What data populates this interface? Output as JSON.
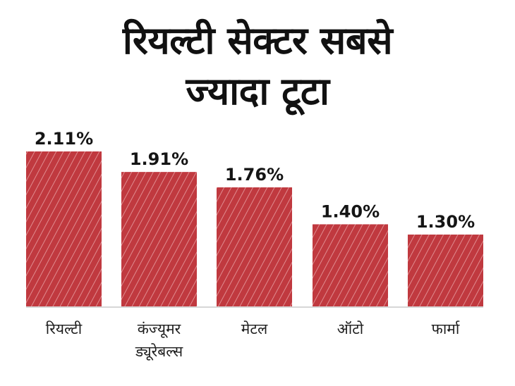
{
  "title": "रियल्टी सेक्टर सबसे\nज्यादा टूटा",
  "colors": {
    "bar": "#c0393f",
    "hatch": "#e8a0a3",
    "baseline": "#d7d7d7",
    "text": "#151515"
  },
  "chart_data": {
    "type": "bar",
    "categories": [
      "रियल्टी",
      "कंज्यूमर\nड्यूरेबल्स",
      "मेटल",
      "ऑटो",
      "फार्मा"
    ],
    "values": [
      2.11,
      1.91,
      1.76,
      1.4,
      1.3
    ],
    "value_labels": [
      "2.11%",
      "1.91%",
      "1.76%",
      "1.40%",
      "1.30%"
    ],
    "ylim": [
      0.6,
      2.11
    ],
    "grid": false,
    "legend": "none"
  }
}
